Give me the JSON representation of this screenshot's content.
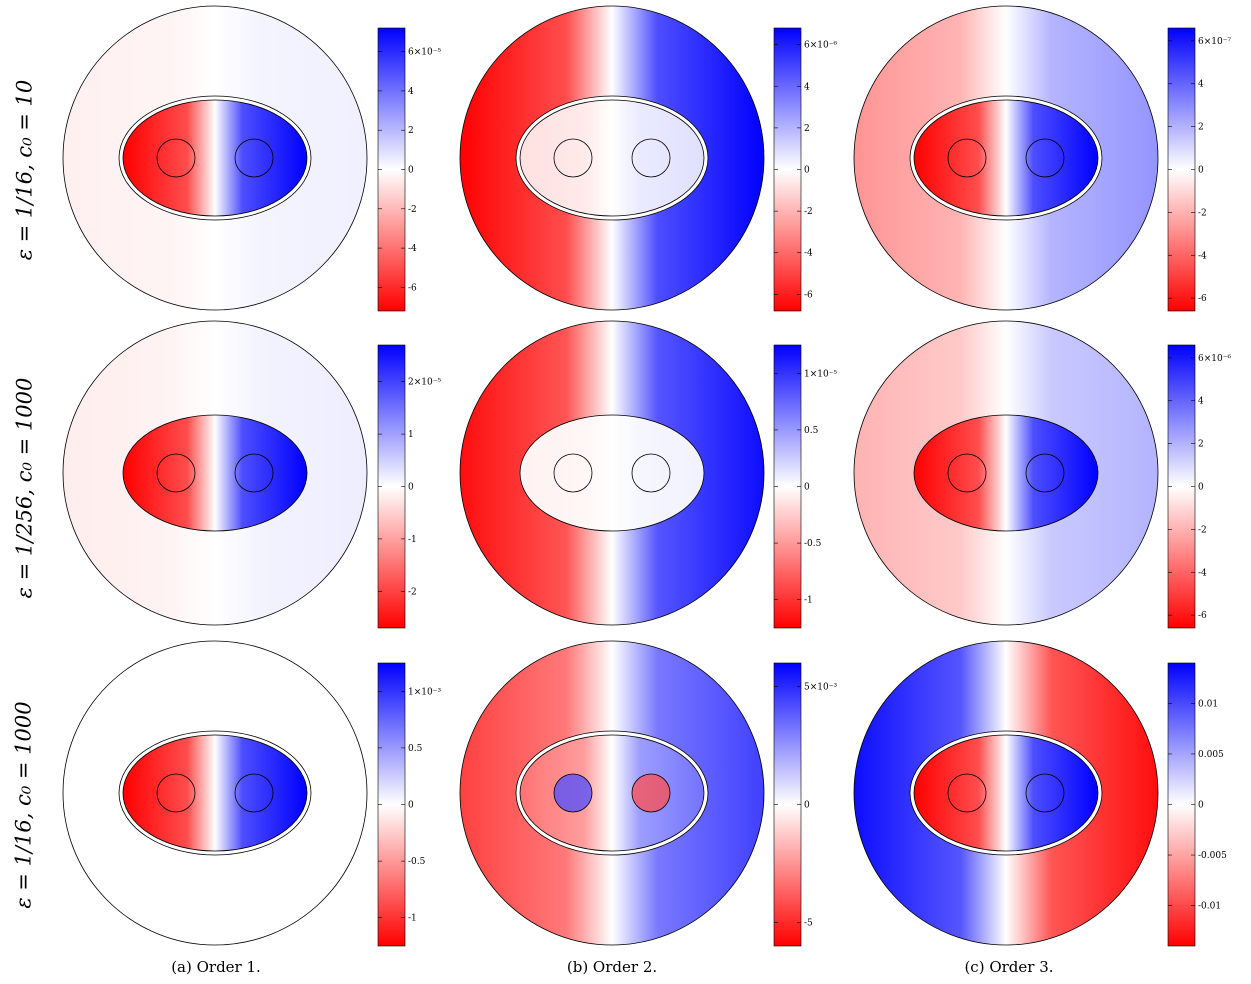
{
  "rows": [
    {
      "label": "ε = 1/16, c₀ = 10"
    },
    {
      "label": "ε = 1/256, c₀ = 1000"
    },
    {
      "label": "ε = 1/16, c₀ = 1000"
    }
  ],
  "captions": [
    "(a)  Order 1.",
    "(b)  Order 2.",
    "(c)  Order 3."
  ],
  "colors": {
    "positive": "#0000ff",
    "negative": "#ff0000",
    "zero": "#ffffff"
  },
  "panels": [
    {
      "id": "r1c1",
      "membrane": true,
      "ellipse_shade": 1.0,
      "outer_shade": 0.06,
      "circles_shade": 0.0,
      "colorbar": {
        "ticks": [
          "-6",
          "-4",
          "-2",
          "0",
          "2",
          "4",
          "6×10⁻⁵"
        ],
        "tick_values": [
          -6,
          -4,
          -2,
          0,
          2,
          4,
          6
        ],
        "range": [
          -7.2,
          7.2
        ]
      }
    },
    {
      "id": "r1c2",
      "membrane": true,
      "ellipse_shade": 0.12,
      "outer_shade": 1.0,
      "circles_shade": 0.0,
      "colorbar": {
        "ticks": [
          "-6",
          "-4",
          "-2",
          "0",
          "2",
          "4",
          "6×10⁻⁶"
        ],
        "tick_values": [
          -6,
          -4,
          -2,
          0,
          2,
          4,
          6
        ],
        "range": [
          -6.8,
          6.8
        ]
      }
    },
    {
      "id": "r1c3",
      "membrane": true,
      "ellipse_shade": 1.0,
      "outer_shade": 0.42,
      "circles_shade": 0.0,
      "colorbar": {
        "ticks": [
          "-6",
          "-4",
          "-2",
          "0",
          "2",
          "4",
          "6×10⁻⁷"
        ],
        "tick_values": [
          -6,
          -4,
          -2,
          0,
          2,
          4,
          6
        ],
        "range": [
          -6.6,
          6.6
        ]
      }
    },
    {
      "id": "r2c1",
      "membrane": false,
      "ellipse_shade": 1.0,
      "outer_shade": 0.07,
      "circles_shade": 0.0,
      "colorbar": {
        "ticks": [
          "-2",
          "-1",
          "0",
          "1",
          "2×10⁻⁵"
        ],
        "tick_values": [
          -2,
          -1,
          0,
          1,
          2
        ],
        "range": [
          -2.7,
          2.7
        ]
      }
    },
    {
      "id": "r2c2",
      "membrane": false,
      "ellipse_shade": 0.05,
      "outer_shade": 0.95,
      "circles_shade": 0.0,
      "colorbar": {
        "ticks": [
          "-1",
          "-0.5",
          "0",
          "0.5",
          "1×10⁻⁵"
        ],
        "tick_values": [
          -1,
          -0.5,
          0,
          0.5,
          1
        ],
        "range": [
          -1.25,
          1.25
        ]
      }
    },
    {
      "id": "r2c3",
      "membrane": false,
      "ellipse_shade": 1.0,
      "outer_shade": 0.3,
      "circles_shade": 0.0,
      "colorbar": {
        "ticks": [
          "-6",
          "-4",
          "-2",
          "0",
          "2",
          "4",
          "6×10⁻⁶"
        ],
        "tick_values": [
          -6,
          -4,
          -2,
          0,
          2,
          4,
          6
        ],
        "range": [
          -6.6,
          6.6
        ]
      }
    },
    {
      "id": "r3c1",
      "membrane": true,
      "ellipse_shade": 1.0,
      "outer_shade": 0.0,
      "circles_shade": 0.0,
      "colorbar": {
        "ticks": [
          "-1",
          "-0.5",
          "0",
          "0.5",
          "1×10⁻³"
        ],
        "tick_values": [
          -1,
          -0.5,
          0,
          0.5,
          1
        ],
        "range": [
          -1.25,
          1.25
        ]
      }
    },
    {
      "id": "r3c2",
      "membrane": true,
      "ellipse_shade": 0.55,
      "outer_shade": 0.75,
      "circles_shade": -0.7,
      "colorbar": {
        "ticks": [
          "-5",
          "0",
          "5×10⁻³"
        ],
        "tick_values": [
          -5,
          0,
          5
        ],
        "range": [
          -6,
          6
        ]
      }
    },
    {
      "id": "r3c3",
      "membrane": true,
      "ellipse_shade": 1.0,
      "outer_shade": -0.95,
      "circles_shade": 0.0,
      "colorbar": {
        "ticks": [
          "-0.01",
          "-0.005",
          "0",
          "0.005",
          "0.01"
        ],
        "tick_values": [
          -0.01,
          -0.005,
          0,
          0.005,
          0.01
        ],
        "range": [
          -0.014,
          0.014
        ]
      }
    }
  ]
}
